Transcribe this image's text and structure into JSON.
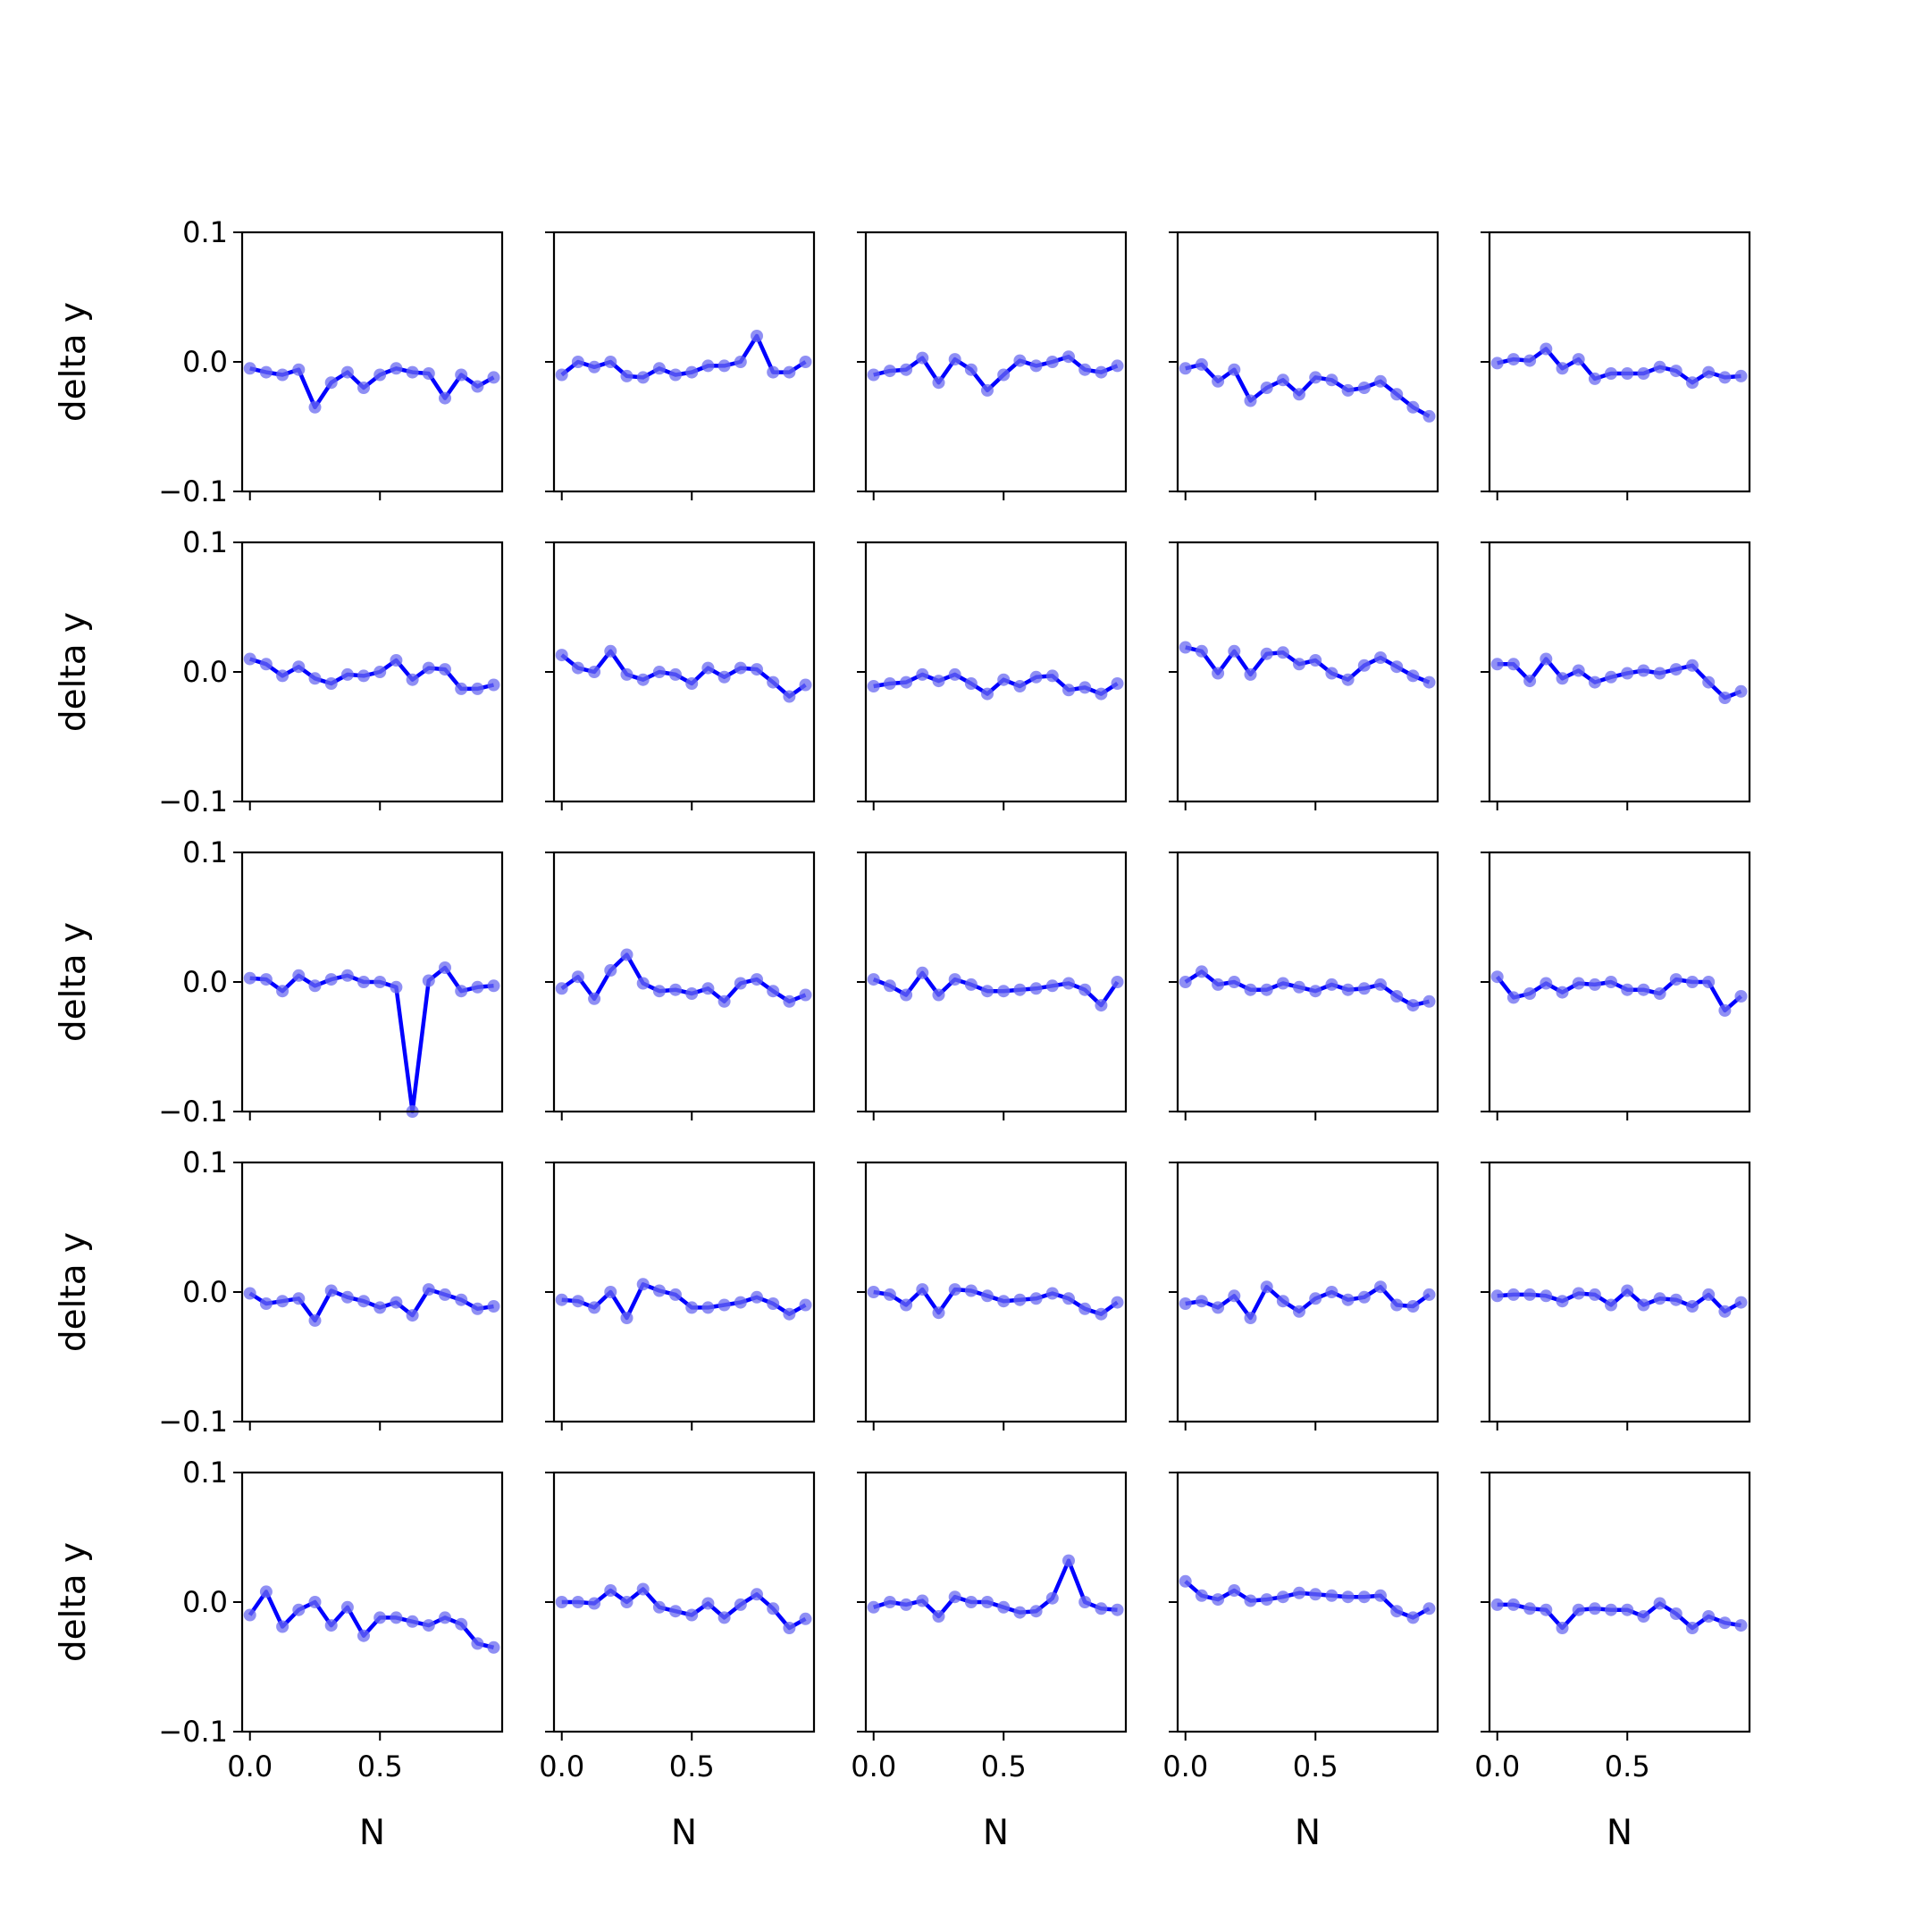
{
  "figure": {
    "rows": 5,
    "cols": 5,
    "ylabel": "delta y",
    "xlabel": "N",
    "xlim": [
      -0.03,
      0.97
    ],
    "ylim": [
      -0.1,
      0.1
    ],
    "xticks": [
      0.0,
      0.5
    ],
    "xtick_labels": [
      "0.0",
      "0.5"
    ],
    "yticks": [
      0.1,
      0.0,
      -0.1
    ],
    "ytick_labels": [
      "0.1",
      "0.0",
      "−0.1"
    ],
    "colors": {
      "line": "#0000ff",
      "marker": "#6a6af0",
      "axis": "#000000",
      "background": "#ffffff"
    }
  },
  "chart_data": {
    "type": "line",
    "layout": "5x5 small multiples sharing axes",
    "xlabel": "N",
    "ylabel": "delta y",
    "xlim": [
      -0.03,
      0.97
    ],
    "ylim": [
      -0.1,
      0.1
    ],
    "grid": false,
    "x": [
      0.0,
      0.0625,
      0.125,
      0.1875,
      0.25,
      0.3125,
      0.375,
      0.4375,
      0.5,
      0.5625,
      0.625,
      0.6875,
      0.75,
      0.8125,
      0.875,
      0.9375
    ],
    "panels": [
      {
        "row": 1,
        "col": 1,
        "y": [
          -0.005,
          -0.008,
          -0.01,
          -0.006,
          -0.035,
          -0.016,
          -0.008,
          -0.02,
          -0.01,
          -0.005,
          -0.008,
          -0.009,
          -0.028,
          -0.01,
          -0.019,
          -0.012
        ]
      },
      {
        "row": 1,
        "col": 2,
        "y": [
          -0.01,
          0.0,
          -0.004,
          0.0,
          -0.011,
          -0.012,
          -0.005,
          -0.01,
          -0.008,
          -0.003,
          -0.003,
          0.0,
          0.02,
          -0.008,
          -0.008,
          0.0
        ]
      },
      {
        "row": 1,
        "col": 3,
        "y": [
          -0.01,
          -0.007,
          -0.006,
          0.003,
          -0.016,
          0.002,
          -0.006,
          -0.022,
          -0.01,
          0.001,
          -0.003,
          0.0,
          0.004,
          -0.006,
          -0.008,
          -0.003
        ]
      },
      {
        "row": 1,
        "col": 4,
        "y": [
          -0.005,
          -0.002,
          -0.015,
          -0.006,
          -0.03,
          -0.02,
          -0.014,
          -0.025,
          -0.012,
          -0.014,
          -0.022,
          -0.02,
          -0.015,
          -0.025,
          -0.035,
          -0.042
        ]
      },
      {
        "row": 1,
        "col": 5,
        "y": [
          -0.001,
          0.002,
          0.001,
          0.01,
          -0.005,
          0.002,
          -0.013,
          -0.009,
          -0.009,
          -0.009,
          -0.004,
          -0.007,
          -0.016,
          -0.008,
          -0.012,
          -0.011
        ]
      },
      {
        "row": 2,
        "col": 1,
        "y": [
          0.01,
          0.006,
          -0.003,
          0.004,
          -0.005,
          -0.009,
          -0.002,
          -0.003,
          0.0,
          0.009,
          -0.006,
          0.003,
          0.002,
          -0.013,
          -0.013,
          -0.01
        ]
      },
      {
        "row": 2,
        "col": 2,
        "y": [
          0.013,
          0.003,
          0.0,
          0.016,
          -0.002,
          -0.006,
          0.0,
          -0.002,
          -0.009,
          0.003,
          -0.004,
          0.003,
          0.002,
          -0.008,
          -0.019,
          -0.01
        ]
      },
      {
        "row": 2,
        "col": 3,
        "y": [
          -0.011,
          -0.009,
          -0.008,
          -0.002,
          -0.007,
          -0.002,
          -0.009,
          -0.017,
          -0.006,
          -0.011,
          -0.004,
          -0.003,
          -0.014,
          -0.012,
          -0.017,
          -0.009
        ]
      },
      {
        "row": 2,
        "col": 4,
        "y": [
          0.019,
          0.016,
          -0.001,
          0.016,
          -0.002,
          0.014,
          0.015,
          0.006,
          0.009,
          -0.001,
          -0.006,
          0.005,
          0.011,
          0.004,
          -0.003,
          -0.008
        ]
      },
      {
        "row": 2,
        "col": 5,
        "y": [
          0.006,
          0.006,
          -0.007,
          0.01,
          -0.005,
          0.001,
          -0.008,
          -0.004,
          -0.001,
          0.001,
          -0.001,
          0.002,
          0.005,
          -0.008,
          -0.02,
          -0.015
        ]
      },
      {
        "row": 3,
        "col": 1,
        "y": [
          0.003,
          0.002,
          -0.007,
          0.005,
          -0.003,
          0.002,
          0.005,
          0.0,
          0.0,
          -0.004,
          -0.1,
          0.001,
          0.011,
          -0.007,
          -0.004,
          -0.003
        ]
      },
      {
        "row": 3,
        "col": 2,
        "y": [
          -0.005,
          0.004,
          -0.013,
          0.009,
          0.021,
          -0.001,
          -0.007,
          -0.006,
          -0.009,
          -0.005,
          -0.015,
          -0.001,
          0.002,
          -0.007,
          -0.015,
          -0.01
        ]
      },
      {
        "row": 3,
        "col": 3,
        "y": [
          0.002,
          -0.003,
          -0.01,
          0.007,
          -0.01,
          0.002,
          -0.002,
          -0.007,
          -0.007,
          -0.006,
          -0.005,
          -0.003,
          -0.001,
          -0.006,
          -0.018,
          0.0
        ]
      },
      {
        "row": 3,
        "col": 4,
        "y": [
          0.0,
          0.008,
          -0.002,
          0.0,
          -0.006,
          -0.006,
          -0.001,
          -0.004,
          -0.007,
          -0.002,
          -0.006,
          -0.005,
          -0.002,
          -0.011,
          -0.018,
          -0.015
        ]
      },
      {
        "row": 3,
        "col": 5,
        "y": [
          0.004,
          -0.012,
          -0.009,
          -0.001,
          -0.008,
          -0.001,
          -0.002,
          0.0,
          -0.006,
          -0.006,
          -0.009,
          0.002,
          0.0,
          0.0,
          -0.022,
          -0.011
        ]
      },
      {
        "row": 4,
        "col": 1,
        "y": [
          -0.001,
          -0.009,
          -0.007,
          -0.005,
          -0.022,
          0.001,
          -0.004,
          -0.007,
          -0.012,
          -0.008,
          -0.018,
          0.002,
          -0.002,
          -0.006,
          -0.013,
          -0.011
        ]
      },
      {
        "row": 4,
        "col": 2,
        "y": [
          -0.006,
          -0.007,
          -0.012,
          0.0,
          -0.02,
          0.006,
          0.001,
          -0.002,
          -0.012,
          -0.012,
          -0.01,
          -0.008,
          -0.004,
          -0.009,
          -0.017,
          -0.01
        ]
      },
      {
        "row": 4,
        "col": 3,
        "y": [
          0.0,
          -0.002,
          -0.01,
          0.002,
          -0.016,
          0.002,
          0.001,
          -0.003,
          -0.007,
          -0.006,
          -0.005,
          -0.001,
          -0.005,
          -0.013,
          -0.017,
          -0.008
        ]
      },
      {
        "row": 4,
        "col": 4,
        "y": [
          -0.009,
          -0.007,
          -0.012,
          -0.003,
          -0.02,
          0.004,
          -0.007,
          -0.015,
          -0.005,
          0.0,
          -0.006,
          -0.004,
          0.004,
          -0.01,
          -0.011,
          -0.002
        ]
      },
      {
        "row": 4,
        "col": 5,
        "y": [
          -0.003,
          -0.002,
          -0.002,
          -0.003,
          -0.007,
          -0.001,
          -0.002,
          -0.01,
          0.001,
          -0.01,
          -0.005,
          -0.006,
          -0.011,
          -0.002,
          -0.015,
          -0.008
        ]
      },
      {
        "row": 5,
        "col": 1,
        "y": [
          -0.01,
          0.008,
          -0.019,
          -0.006,
          0.0,
          -0.018,
          -0.004,
          -0.026,
          -0.012,
          -0.012,
          -0.015,
          -0.018,
          -0.012,
          -0.017,
          -0.032,
          -0.035
        ]
      },
      {
        "row": 5,
        "col": 2,
        "y": [
          0.0,
          0.0,
          -0.001,
          0.009,
          0.0,
          0.01,
          -0.004,
          -0.007,
          -0.01,
          -0.001,
          -0.012,
          -0.002,
          0.006,
          -0.005,
          -0.02,
          -0.013
        ]
      },
      {
        "row": 5,
        "col": 3,
        "y": [
          -0.004,
          0.0,
          -0.002,
          0.001,
          -0.011,
          0.004,
          0.0,
          0.0,
          -0.004,
          -0.008,
          -0.007,
          0.003,
          0.032,
          0.0,
          -0.005,
          -0.006
        ]
      },
      {
        "row": 5,
        "col": 4,
        "y": [
          0.016,
          0.005,
          0.002,
          0.009,
          0.001,
          0.002,
          0.004,
          0.007,
          0.006,
          0.005,
          0.004,
          0.004,
          0.005,
          -0.007,
          -0.012,
          -0.005
        ]
      },
      {
        "row": 5,
        "col": 5,
        "y": [
          -0.002,
          -0.002,
          -0.005,
          -0.006,
          -0.02,
          -0.006,
          -0.005,
          -0.006,
          -0.006,
          -0.011,
          -0.001,
          -0.009,
          -0.02,
          -0.011,
          -0.016,
          -0.018
        ]
      }
    ]
  }
}
